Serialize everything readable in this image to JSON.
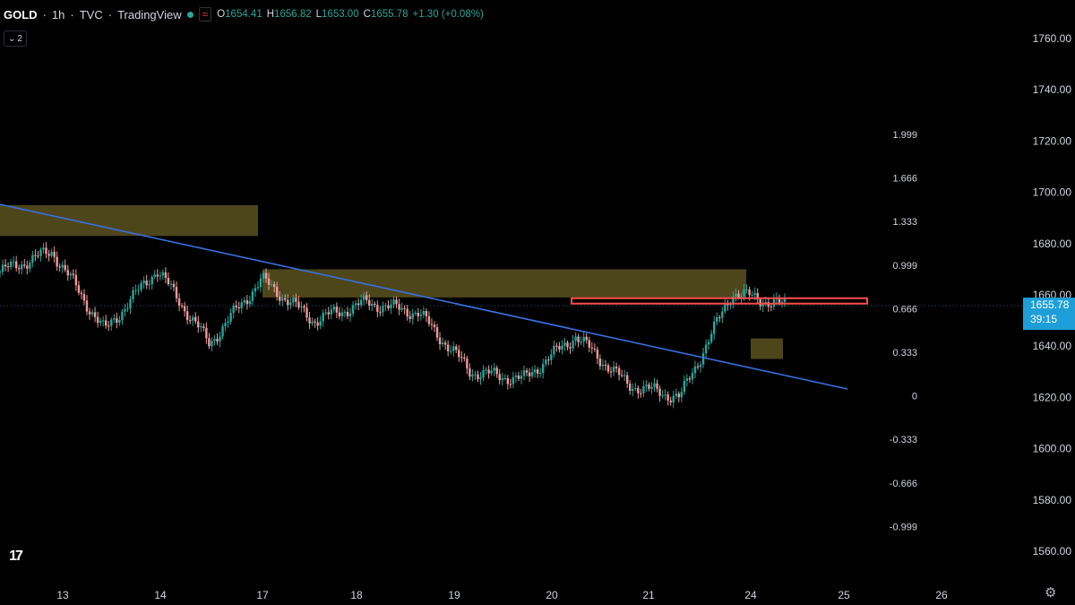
{
  "header": {
    "symbol": "GOLD",
    "interval": "1h",
    "exchange": "TVC",
    "source": "TradingView",
    "open_label": "O",
    "open": "1654.41",
    "high_label": "H",
    "high": "1656.82",
    "low_label": "L",
    "low": "1653.00",
    "close_label": "C",
    "close": "1655.78",
    "change": "+1.30 (+0.08%)"
  },
  "collapse_count": "2",
  "price_tag": {
    "price": "1655.78",
    "countdown": "39:15"
  },
  "colors": {
    "up": "#26a69a",
    "down": "#ef9a9a",
    "trendline": "#3a6fe0",
    "zone": "#5a5220",
    "resistance": "#ff4d4d",
    "price_tag": "#1e9ed8"
  },
  "chart_data": {
    "type": "candlestick",
    "symbol": "GOLD",
    "interval": "1h",
    "price_axis": {
      "ticks": [
        "1760.00",
        "1740.00",
        "1720.00",
        "1700.00",
        "1680.00",
        "1660.00",
        "1640.00",
        "1620.00",
        "1600.00",
        "1580.00",
        "1560.00"
      ],
      "ylim": [
        1552,
        1770
      ]
    },
    "fib_labels": [
      "1.999",
      "1.666",
      "1.333",
      "0.999",
      "0.666",
      "0.333",
      "0",
      "-0.333",
      "-0.666",
      "-0.999"
    ],
    "x_axis": {
      "ticks": [
        "13",
        "14",
        "17",
        "18",
        "19",
        "20",
        "21",
        "24",
        "25",
        "26"
      ]
    },
    "ohlc_key_points": [
      {
        "x": "13",
        "close": 1669
      },
      {
        "x": "13",
        "close": 1677
      },
      {
        "x": "14",
        "close": 1646
      },
      {
        "x": "14",
        "close": 1670
      },
      {
        "x": "17",
        "close": 1641
      },
      {
        "x": "17",
        "close": 1666
      },
      {
        "x": "18",
        "close": 1650
      },
      {
        "x": "18",
        "close": 1657
      },
      {
        "x": "19",
        "close": 1653
      },
      {
        "x": "19",
        "close": 1630
      },
      {
        "x": "20",
        "close": 1627
      },
      {
        "x": "20",
        "close": 1644
      },
      {
        "x": "21",
        "close": 1625
      },
      {
        "x": "21",
        "close": 1620
      },
      {
        "x": "24",
        "close": 1661
      },
      {
        "x": "24",
        "close": 1655.78
      }
    ],
    "trendline": {
      "start": {
        "x": "12",
        "price": 1695
      },
      "end": {
        "x": "25",
        "price": 1623
      }
    },
    "zones": [
      {
        "name": "supply-zone-1",
        "from": "12",
        "to": "17",
        "price_low": 1683,
        "price_high": 1695
      },
      {
        "name": "supply-zone-2",
        "from": "17",
        "to": "24",
        "price_low": 1659,
        "price_high": 1670
      },
      {
        "name": "demand-zone",
        "from": "24",
        "to": "24",
        "price_low": 1635,
        "price_high": 1643
      }
    ],
    "resistance_box": {
      "from": "20",
      "to": "25",
      "price_low": 1656,
      "price_high": 1658
    },
    "last_price": 1655.78
  }
}
